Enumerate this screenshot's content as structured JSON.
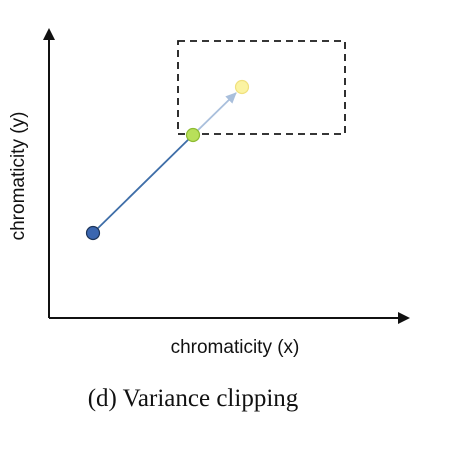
{
  "figure": {
    "caption": "(d) Variance clipping",
    "x_axis_label": "chromaticity (x)",
    "y_axis_label": "chromaticity (y)"
  },
  "colors": {
    "axis": "#111111",
    "history_point": "#3a66b0",
    "clipped_point": "#b8e05a",
    "target_point": "#fbf3a2",
    "solid_arrow": "#3f6ea8",
    "faded_arrow": "#a9bfdc",
    "clip_box": "#1a1a1a"
  },
  "legend": {
    "history_point": "history-sample-point",
    "clipped_point": "clipped-point",
    "target_point": "current-sample-point",
    "clip_box": "variance-clip-box"
  }
}
